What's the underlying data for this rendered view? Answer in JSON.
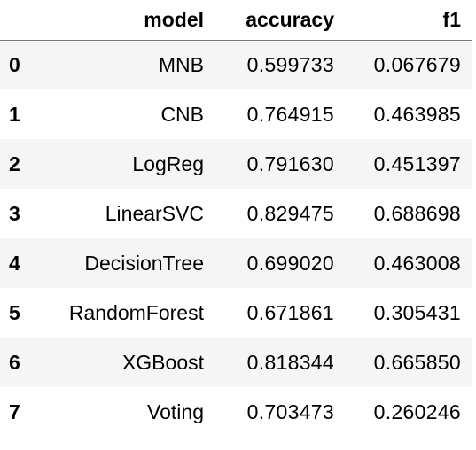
{
  "table": {
    "index_header": "",
    "columns": [
      "model",
      "accuracy",
      "f1"
    ],
    "rows": [
      {
        "index": "0",
        "model": "MNB",
        "accuracy": "0.599733",
        "f1": "0.067679"
      },
      {
        "index": "1",
        "model": "CNB",
        "accuracy": "0.764915",
        "f1": "0.463985"
      },
      {
        "index": "2",
        "model": "LogReg",
        "accuracy": "0.791630",
        "f1": "0.451397"
      },
      {
        "index": "3",
        "model": "LinearSVC",
        "accuracy": "0.829475",
        "f1": "0.688698"
      },
      {
        "index": "4",
        "model": "DecisionTree",
        "accuracy": "0.699020",
        "f1": "0.463008"
      },
      {
        "index": "5",
        "model": "RandomForest",
        "accuracy": "0.671861",
        "f1": "0.305431"
      },
      {
        "index": "6",
        "model": "XGBoost",
        "accuracy": "0.818344",
        "f1": "0.665850"
      },
      {
        "index": "7",
        "model": "Voting",
        "accuracy": "0.703473",
        "f1": "0.260246"
      }
    ]
  }
}
